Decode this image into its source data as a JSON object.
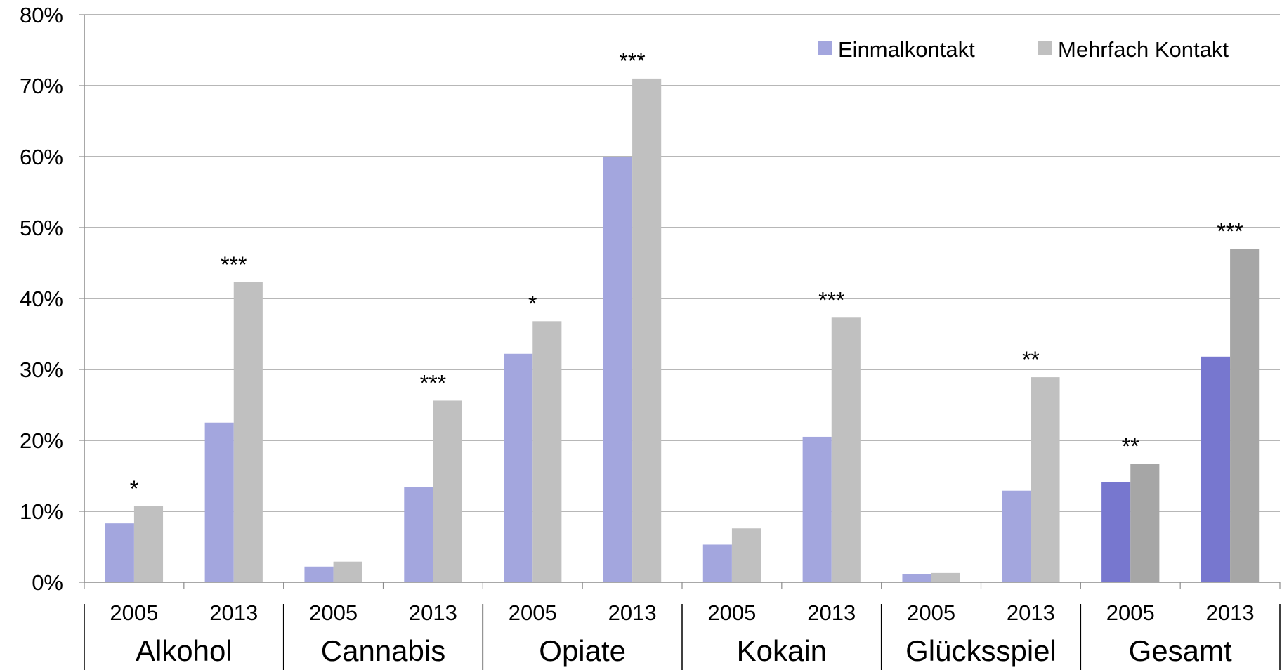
{
  "chart_data": {
    "type": "bar",
    "ylim": [
      0,
      80
    ],
    "yticks": [
      "0%",
      "10%",
      "20%",
      "30%",
      "40%",
      "50%",
      "60%",
      "70%",
      "80%"
    ],
    "grid": true,
    "legend_position": "top-right",
    "groups": [
      {
        "label": "Alkohol",
        "years": [
          "2005",
          "2013"
        ]
      },
      {
        "label": "Cannabis",
        "years": [
          "2005",
          "2013"
        ]
      },
      {
        "label": "Opiate",
        "years": [
          "2005",
          "2013"
        ]
      },
      {
        "label": "Kokain",
        "years": [
          "2005",
          "2013"
        ]
      },
      {
        "label": "Glücksspiel",
        "years": [
          "2005",
          "2013"
        ]
      },
      {
        "label": "Gesamt",
        "years": [
          "2005",
          "2013"
        ]
      }
    ],
    "series": [
      {
        "name": "Einmalkontakt",
        "color": "#a3a6de",
        "values": [
          8.3,
          22.5,
          2.2,
          13.4,
          32.2,
          60.0,
          5.3,
          20.5,
          1.1,
          12.9,
          14.1,
          31.8
        ]
      },
      {
        "name": "Mehrfach Kontakt",
        "color": "#c0c0c0",
        "values": [
          10.7,
          42.3,
          2.9,
          25.6,
          36.8,
          71.0,
          7.6,
          37.3,
          1.3,
          28.9,
          16.7,
          47.0
        ]
      }
    ],
    "highlight_colors": {
      "Einmalkontakt": "#7777cf",
      "Mehrfach Kontakt": "#a6a6a6"
    },
    "annotations": [
      "*",
      "***",
      "",
      "***",
      "*",
      "***",
      "",
      "***",
      "",
      "**",
      "**",
      "***"
    ]
  }
}
